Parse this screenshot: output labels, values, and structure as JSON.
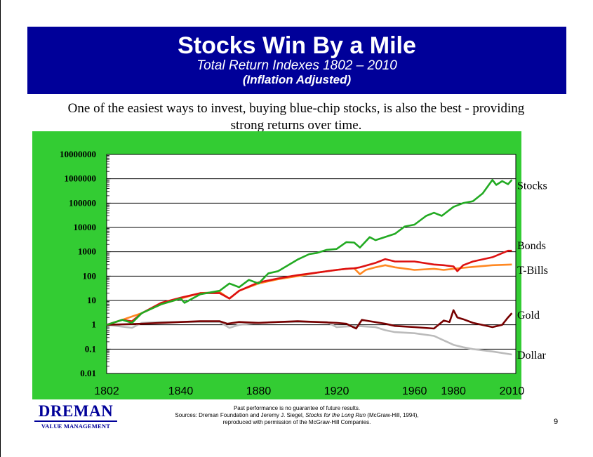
{
  "slide": {
    "title": "Stocks Win By a Mile",
    "subtitle": "Total Return Indexes 1802 – 2010",
    "subtitle2": "(Inflation Adjusted)",
    "caption": "One of the easiest ways to invest, buying blue-chip stocks, is also the best - providing strong returns over time.",
    "page_number": "9"
  },
  "footer": {
    "logo_name": "DREMAN",
    "logo_sub": "VALUE MANAGEMENT",
    "note_line1": "Past performance is no guarantee of future results.",
    "note_line2_prefix": "Sources: Dreman Foundation and Jeremy J. Siegel, ",
    "note_line2_book": "Stocks for the Long Run",
    "note_line2_suffix": " (McGraw-Hill, 1994),",
    "note_line3": "reproduced with permission of the McGraw-Hill Companies."
  },
  "colors": {
    "banner": "#000099",
    "chart_bg": "#33cc33",
    "plot_bg": "#ffffff",
    "stocks": "#22aa22",
    "bonds": "#dd1111",
    "tbills": "#ff8822",
    "gold": "#770000",
    "dollar": "#bbbbbb"
  },
  "chart_data": {
    "type": "line",
    "title": "",
    "xlabel": "",
    "ylabel": "",
    "y_scale": "log",
    "xlim": [
      1802,
      2012
    ],
    "ylim": [
      0.01,
      10000000
    ],
    "x_ticks": [
      "1802",
      "1840",
      "1880",
      "1920",
      "1960",
      "1980",
      "2010"
    ],
    "y_ticks": [
      "10000000",
      "1000000",
      "100000",
      "10000",
      "1000",
      "100",
      "10",
      "1",
      "0.1",
      "0.01"
    ],
    "grid": "horizontal",
    "legend": "labels at right end of lines",
    "series": [
      {
        "name": "Stocks",
        "color_key": "stocks",
        "x": [
          1802,
          1810,
          1815,
          1820,
          1830,
          1840,
          1842,
          1850,
          1860,
          1865,
          1870,
          1875,
          1880,
          1885,
          1890,
          1900,
          1906,
          1910,
          1915,
          1920,
          1925,
          1929,
          1932,
          1937,
          1940,
          1950,
          1955,
          1960,
          1966,
          1970,
          1974,
          1980,
          1985,
          1990,
          1995,
          2000,
          2002,
          2005,
          2008,
          2010
        ],
        "values": [
          1,
          1.6,
          1.2,
          3,
          7,
          12,
          8,
          18,
          25,
          50,
          35,
          70,
          50,
          130,
          160,
          480,
          800,
          900,
          1200,
          1300,
          2500,
          2400,
          1500,
          4000,
          3000,
          5500,
          11000,
          13000,
          30000,
          40000,
          30000,
          70000,
          100000,
          120000,
          250000,
          900000,
          560000,
          800000,
          600000,
          900000
        ]
      },
      {
        "name": "Bonds",
        "color_key": "bonds",
        "x": [
          1802,
          1810,
          1815,
          1820,
          1830,
          1840,
          1850,
          1860,
          1865,
          1870,
          1880,
          1890,
          1900,
          1910,
          1920,
          1925,
          1929,
          1932,
          1940,
          1945,
          1950,
          1960,
          1970,
          1975,
          1980,
          1982,
          1985,
          1990,
          2000,
          2008,
          2010
        ],
        "values": [
          1,
          1.6,
          1.4,
          3,
          8,
          13,
          20,
          20,
          12,
          25,
          55,
          80,
          110,
          140,
          180,
          200,
          210,
          230,
          350,
          500,
          400,
          400,
          300,
          280,
          250,
          160,
          280,
          400,
          600,
          1100,
          1100
        ]
      },
      {
        "name": "T-Bills",
        "color_key": "tbills",
        "x": [
          1802,
          1810,
          1820,
          1830,
          1840,
          1850,
          1860,
          1865,
          1870,
          1880,
          1890,
          1900,
          1910,
          1920,
          1925,
          1929,
          1932,
          1935,
          1940,
          1945,
          1950,
          1960,
          1970,
          1975,
          1980,
          1985,
          1990,
          2000,
          2010
        ],
        "values": [
          1,
          1.6,
          3,
          7,
          12,
          20,
          22,
          12,
          25,
          50,
          75,
          100,
          140,
          180,
          200,
          210,
          120,
          180,
          230,
          280,
          230,
          180,
          200,
          180,
          200,
          220,
          240,
          280,
          300
        ]
      },
      {
        "name": "Gold",
        "color_key": "gold",
        "x": [
          1802,
          1820,
          1840,
          1850,
          1860,
          1864,
          1870,
          1880,
          1890,
          1900,
          1910,
          1920,
          1925,
          1930,
          1933,
          1935,
          1945,
          1950,
          1960,
          1970,
          1975,
          1978,
          1980,
          1982,
          1985,
          1990,
          2000,
          2005,
          2008,
          2010
        ],
        "values": [
          1,
          1.1,
          1.3,
          1.4,
          1.4,
          1.1,
          1.3,
          1.2,
          1.3,
          1.4,
          1.3,
          1.2,
          1.1,
          0.7,
          1.6,
          1.5,
          1.1,
          0.9,
          0.8,
          0.7,
          1.5,
          1.3,
          4,
          2,
          1.7,
          1.2,
          0.8,
          1.0,
          2.0,
          3.0
        ]
      },
      {
        "name": "Dollar",
        "color_key": "dollar",
        "x": [
          1802,
          1815,
          1820,
          1830,
          1840,
          1850,
          1860,
          1865,
          1870,
          1880,
          1890,
          1900,
          1915,
          1920,
          1930,
          1940,
          1945,
          1950,
          1960,
          1970,
          1980,
          1985,
          1990,
          2000,
          2010
        ],
        "values": [
          1,
          0.75,
          1.2,
          1.3,
          1.3,
          1.3,
          1.3,
          0.75,
          1.0,
          1.2,
          1.3,
          1.3,
          1.3,
          0.8,
          0.9,
          0.8,
          0.6,
          0.5,
          0.45,
          0.35,
          0.15,
          0.12,
          0.1,
          0.08,
          0.06
        ]
      }
    ]
  }
}
